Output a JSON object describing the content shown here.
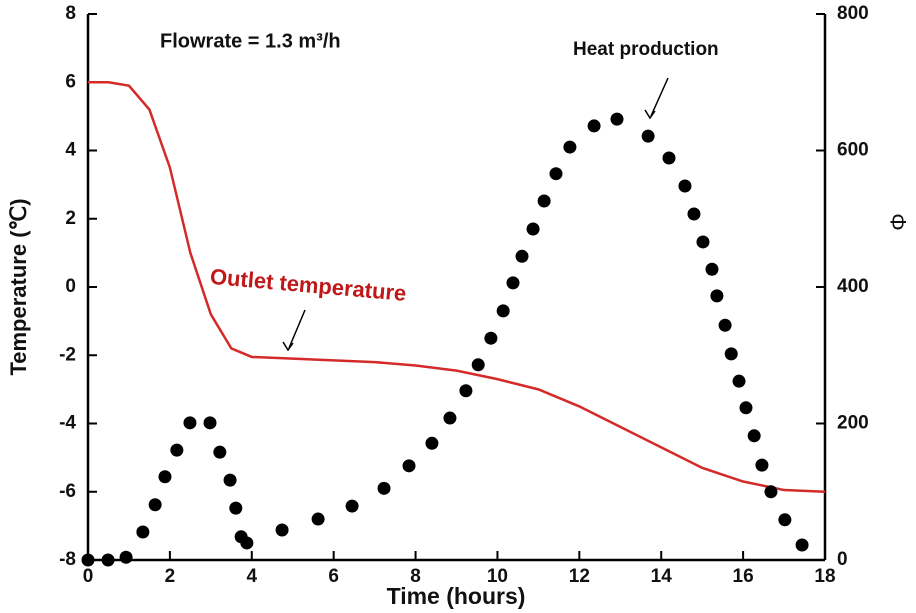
{
  "chart_data": {
    "type": "line",
    "xlabel": "Time (hours)",
    "ylabel": "Temperature (℃)",
    "y2label": "Φ",
    "annotations": [
      {
        "text": "Flowrate = 1.3 m³/h"
      }
    ],
    "xlim": [
      0,
      18
    ],
    "xticks": [
      0,
      2,
      4,
      6,
      8,
      10,
      12,
      14,
      16,
      18
    ],
    "ylim": [
      -8,
      8
    ],
    "yticks": [
      -8,
      -6,
      -4,
      -2,
      0,
      2,
      4,
      6,
      8
    ],
    "y2lim": [
      0,
      800
    ],
    "y2ticks": [
      0,
      200,
      400,
      600,
      800
    ],
    "series": [
      {
        "name": "Outlet temperature",
        "type": "line",
        "color": "#d42a2a",
        "x": [
          0,
          0.5,
          1,
          1.5,
          2,
          2.5,
          3,
          3.5,
          4,
          5,
          6,
          7,
          8,
          9,
          10,
          11,
          12,
          13,
          14,
          15,
          16,
          17,
          18
        ],
        "values": [
          6,
          6,
          5.9,
          5.2,
          3.5,
          1,
          -0.8,
          -1.8,
          -2.05,
          -2.1,
          -2.15,
          -2.2,
          -2.3,
          -2.45,
          -2.7,
          -3.0,
          -3.5,
          -4.1,
          -4.7,
          -5.3,
          -5.7,
          -5.95,
          -6
        ]
      },
      {
        "name": "Heat production",
        "type": "scatter",
        "color": "#000000",
        "axis": "y2",
        "x": [
          0,
          0.49,
          0.93,
          1.34,
          1.64,
          1.88,
          2.17,
          2.49,
          2.98,
          3.22,
          3.47,
          3.61,
          3.74,
          3.88,
          4.74,
          5.62,
          6.45,
          7.23,
          7.84,
          8.4,
          8.84,
          9.23,
          9.53,
          9.84,
          10.14,
          10.38,
          10.6,
          10.87,
          11.14,
          11.43,
          11.77,
          12.36,
          12.92,
          13.68,
          14.19,
          14.58,
          14.8,
          15.02,
          15.24,
          15.36,
          15.56,
          15.71,
          15.9,
          16.07,
          16.27,
          16.46,
          16.68,
          17.02,
          17.44
        ],
        "values": [
          0,
          0,
          4,
          41,
          81,
          122,
          161,
          201,
          201,
          158,
          117,
          76,
          34,
          25,
          44,
          60,
          79,
          105,
          138,
          171,
          208,
          248,
          286,
          325,
          365,
          406,
          445,
          485,
          526,
          566,
          605,
          636,
          646,
          621,
          589,
          548,
          507,
          466,
          426,
          387,
          344,
          302,
          262,
          223,
          182,
          139,
          100,
          59,
          22
        ]
      }
    ]
  }
}
